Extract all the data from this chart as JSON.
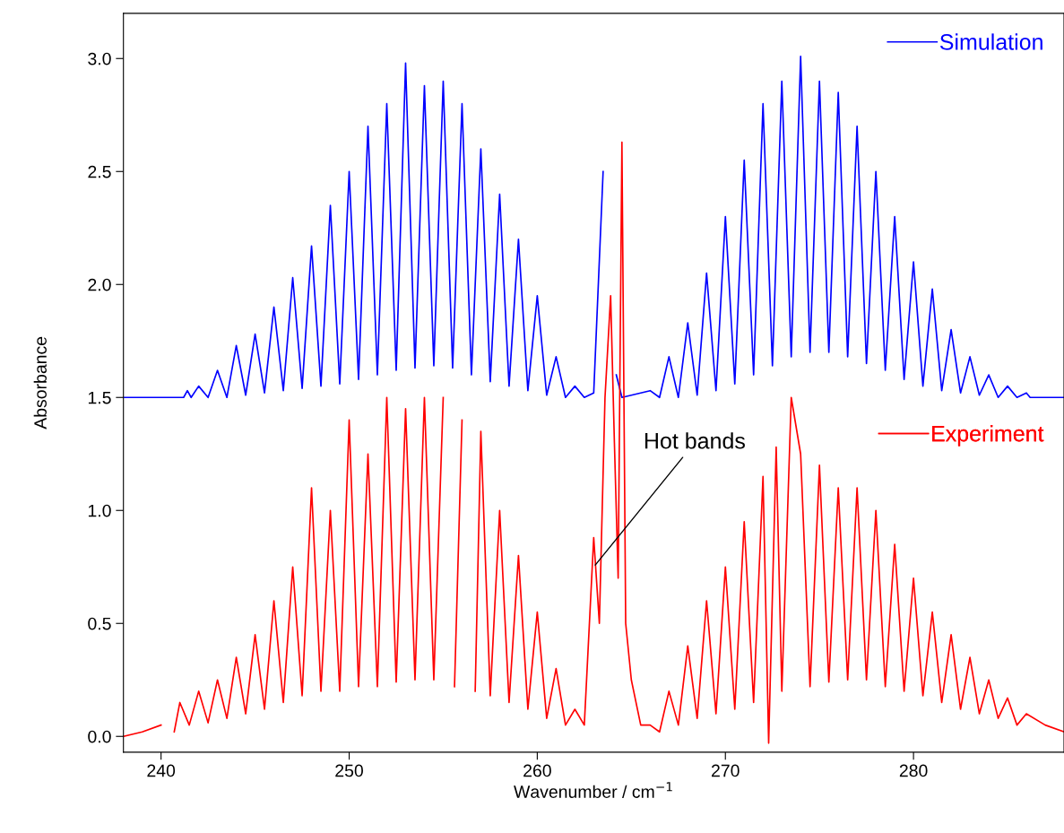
{
  "chart_data": {
    "type": "line",
    "xlabel": "Wavenumber / cm$^{−1}$",
    "ylabel": "Absorbance",
    "xlim": [
      238,
      288
    ],
    "ylim": [
      -0.07,
      3.2
    ],
    "xticks": [
      240,
      250,
      260,
      270,
      280
    ],
    "yticks": [
      {
        "value": 0,
        "label": "0.0"
      },
      {
        "value": 0.5,
        "label": "0.5"
      },
      {
        "value": 1,
        "label": "1.0"
      },
      {
        "value": 1.5,
        "label": "1.5"
      },
      {
        "value": 2,
        "label": "2.0"
      },
      {
        "value": 2.5,
        "label": "2.5"
      },
      {
        "value": 3,
        "label": "3.0"
      }
    ],
    "grid": false,
    "legend": "top right",
    "marker": "none",
    "line_style": "solid",
    "annotations": [
      {
        "text": "Hot bands",
        "x": 263.0,
        "y": 0.75
      }
    ],
    "series": [
      {
        "name": "Simulation",
        "color": "#0000ff",
        "x": [
          238,
          241.2,
          241.4,
          241.6,
          242,
          242.5,
          243,
          243.5,
          244,
          244.5,
          245,
          245.5,
          246,
          246.5,
          247,
          247.5,
          248,
          248.5,
          249,
          249.5,
          250,
          250.5,
          251,
          251.5,
          252,
          252.5,
          253,
          253.5,
          254,
          254.5,
          255,
          255.5,
          256,
          256.5,
          257,
          257.5,
          258,
          258.5,
          259,
          259.5,
          260,
          260.5,
          261,
          261.5,
          262,
          262.5,
          263,
          263.5,
          263.7,
          264.0,
          264.2,
          264.5,
          266,
          266.5,
          267,
          267.5,
          268,
          268.5,
          269,
          269.5,
          270,
          270.5,
          271,
          271.5,
          272,
          272.5,
          273,
          273.5,
          274,
          274.5,
          275,
          275.5,
          276,
          276.5,
          277,
          277.5,
          278,
          278.5,
          279,
          279.5,
          280,
          280.5,
          281,
          281.5,
          282,
          282.5,
          283,
          283.5,
          284,
          284.5,
          285,
          285.5,
          286,
          286.2,
          288
        ],
        "values": [
          1.5,
          1.5,
          1.53,
          1.5,
          1.55,
          1.5,
          1.62,
          1.5,
          1.73,
          1.51,
          1.78,
          1.52,
          1.9,
          1.53,
          2.03,
          1.54,
          2.17,
          1.55,
          2.35,
          1.56,
          2.5,
          1.58,
          2.7,
          1.6,
          2.8,
          1.62,
          2.98,
          1.63,
          2.88,
          1.64,
          2.9,
          1.63,
          2.8,
          1.6,
          2.6,
          1.57,
          2.4,
          1.55,
          2.2,
          1.53,
          1.95,
          1.51,
          1.68,
          1.5,
          1.55,
          1.5,
          1.52,
          2.5,
          null,
          null,
          1.6,
          1.5,
          1.53,
          1.5,
          1.68,
          1.5,
          1.83,
          1.51,
          2.05,
          1.53,
          2.3,
          1.56,
          2.55,
          1.6,
          2.8,
          1.64,
          2.9,
          1.68,
          3.01,
          1.7,
          2.9,
          1.7,
          2.85,
          1.68,
          2.7,
          1.65,
          2.5,
          1.62,
          2.3,
          1.58,
          2.1,
          1.55,
          1.98,
          1.53,
          1.8,
          1.52,
          1.68,
          1.51,
          1.6,
          1.5,
          1.55,
          1.5,
          1.52,
          1.5,
          1.5
        ]
      },
      {
        "name": "Experiment",
        "color": "#ff0000",
        "x": [
          238,
          239,
          240,
          240.6,
          240.7,
          241,
          241.5,
          242,
          242.5,
          243,
          243.5,
          244,
          244.5,
          245,
          245.5,
          246,
          246.5,
          247,
          247.5,
          248,
          248.5,
          249,
          249.5,
          250,
          250.5,
          251,
          251.5,
          252,
          252.5,
          253,
          253.5,
          254,
          254.5,
          255,
          255.2,
          255.6,
          256,
          256.4,
          256.7,
          257,
          257.5,
          258,
          258.5,
          259,
          259.5,
          260,
          260.5,
          261,
          261.5,
          262,
          262.5,
          263.0,
          263.3,
          263.6,
          263.9,
          264.1,
          264.3,
          264.5,
          264.7,
          265.0,
          265.5,
          266,
          266.5,
          267,
          267.5,
          268,
          268.5,
          269,
          269.5,
          270,
          270.5,
          271,
          271.5,
          272,
          272.3,
          272.7,
          273,
          273.5,
          274,
          274.5,
          275,
          275.5,
          276,
          276.5,
          277,
          277.5,
          278,
          278.5,
          279,
          279.5,
          280,
          280.5,
          281,
          281.5,
          282,
          282.5,
          283,
          283.5,
          284,
          284.5,
          285,
          285.5,
          286,
          287,
          288
        ],
        "values": [
          0.0,
          0.02,
          0.05,
          null,
          0.02,
          0.15,
          0.05,
          0.2,
          0.06,
          0.25,
          0.08,
          0.35,
          0.1,
          0.45,
          0.12,
          0.6,
          0.15,
          0.75,
          0.18,
          1.1,
          0.2,
          1.0,
          0.2,
          1.4,
          0.22,
          1.25,
          0.22,
          1.5,
          0.24,
          1.45,
          0.25,
          1.5,
          0.25,
          1.5,
          null,
          0.22,
          1.4,
          null,
          0.2,
          1.35,
          0.18,
          1.0,
          0.15,
          0.8,
          0.12,
          0.55,
          0.08,
          0.3,
          0.05,
          0.12,
          0.05,
          0.88,
          0.5,
          1.5,
          1.95,
          1.3,
          0.7,
          2.63,
          0.5,
          0.25,
          0.05,
          0.05,
          0.02,
          0.2,
          0.05,
          0.4,
          0.08,
          0.6,
          0.1,
          0.75,
          0.12,
          0.95,
          0.15,
          1.15,
          -0.03,
          1.28,
          0.2,
          1.5,
          1.25,
          0.22,
          1.2,
          0.24,
          1.1,
          0.25,
          1.1,
          0.25,
          1.0,
          0.22,
          0.85,
          0.2,
          0.7,
          0.18,
          0.55,
          0.15,
          0.45,
          0.12,
          0.35,
          0.1,
          0.25,
          0.08,
          0.17,
          0.05,
          0.1,
          0.05,
          0.02
        ]
      }
    ]
  }
}
